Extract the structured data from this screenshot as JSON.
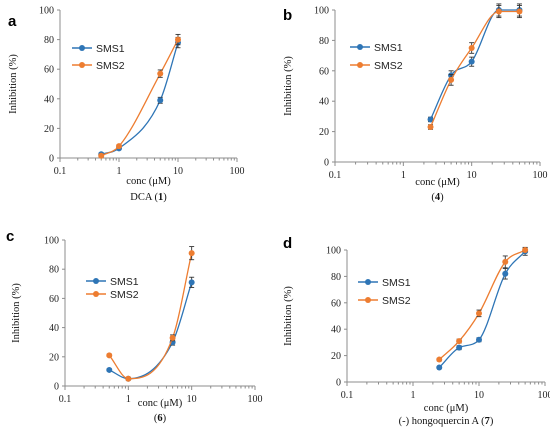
{
  "chart_data": [
    {
      "type": "scatter",
      "panel_letter": "a",
      "xlabel": "conc (μM)",
      "caption_pre": "DCA (",
      "caption_bold": "1",
      "caption_post": ")",
      "ylabel": "Inhibition (%)",
      "x_scale": "log",
      "xlim": [
        0.1,
        100
      ],
      "ylim": [
        0,
        100
      ],
      "x_ticks": [
        0.1,
        1,
        10,
        100
      ],
      "x_tick_labels": [
        "0.1",
        "1",
        "10",
        "100"
      ],
      "y_ticks": [
        0,
        20,
        40,
        60,
        80,
        100
      ],
      "y_tick_labels": [
        "0",
        "20",
        "40",
        "60",
        "80",
        "100"
      ],
      "legend_position": "top-left",
      "series": [
        {
          "name": "SMS1",
          "color": "#2e75b6",
          "x": [
            0.5,
            1,
            5,
            10
          ],
          "y": [
            2.5,
            6.5,
            39,
            78
          ],
          "err": [
            0.8,
            0.8,
            2,
            3.5
          ]
        },
        {
          "name": "SMS2",
          "color": "#ed7d31",
          "x": [
            0.5,
            1,
            5,
            10
          ],
          "y": [
            1.5,
            8,
            57,
            80
          ],
          "err": [
            0.8,
            1,
            2.5,
            3.5
          ]
        }
      ]
    },
    {
      "type": "scatter",
      "panel_letter": "b",
      "xlabel": "conc (μM)",
      "caption_pre": "(",
      "caption_bold": "4",
      "caption_post": ")",
      "ylabel": "Inhibition (%)",
      "x_scale": "log",
      "xlim": [
        0.1,
        100
      ],
      "ylim": [
        0,
        100
      ],
      "x_ticks": [
        0.1,
        1,
        10,
        100
      ],
      "x_tick_labels": [
        "0.1",
        "1",
        "10",
        "100"
      ],
      "y_ticks": [
        0,
        20,
        40,
        60,
        80,
        100
      ],
      "y_tick_labels": [
        "0",
        "20",
        "40",
        "60",
        "80",
        "100"
      ],
      "legend_position": "top-left",
      "series": [
        {
          "name": "SMS1",
          "color": "#2e75b6",
          "x": [
            2.5,
            5,
            10,
            25,
            50
          ],
          "y": [
            28,
            57,
            66,
            100,
            100
          ],
          "err": [
            1.5,
            3,
            3,
            4,
            4
          ]
        },
        {
          "name": "SMS2",
          "color": "#ed7d31",
          "x": [
            2.5,
            5,
            10,
            25,
            50
          ],
          "y": [
            23,
            54,
            75,
            99,
            99
          ],
          "err": [
            1.5,
            3.5,
            3.5,
            4,
            4
          ]
        }
      ]
    },
    {
      "type": "scatter",
      "panel_letter": "c",
      "xlabel": "conc (μM)",
      "caption_pre": "(",
      "caption_bold": "6",
      "caption_post": ")",
      "ylabel": "Inhibition (%)",
      "x_scale": "log",
      "xlim": [
        0.1,
        100
      ],
      "ylim": [
        0,
        100
      ],
      "x_ticks": [
        0.1,
        1,
        10,
        100
      ],
      "x_tick_labels": [
        "0.1",
        "1",
        "10",
        "100"
      ],
      "y_ticks": [
        0,
        20,
        40,
        60,
        80,
        100
      ],
      "y_tick_labels": [
        "0",
        "20",
        "40",
        "60",
        "80",
        "100"
      ],
      "legend_position": "left",
      "series": [
        {
          "name": "SMS1",
          "color": "#2e75b6",
          "x": [
            0.5,
            1,
            5,
            10
          ],
          "y": [
            11,
            5,
            30,
            71
          ],
          "err": [
            0.8,
            0.8,
            2,
            3.5
          ]
        },
        {
          "name": "SMS2",
          "color": "#ed7d31",
          "x": [
            0.5,
            1,
            5,
            10
          ],
          "y": [
            21,
            5,
            33,
            91
          ],
          "err": [
            0.8,
            0.8,
            2,
            4.5
          ]
        }
      ]
    },
    {
      "type": "scatter",
      "panel_letter": "d",
      "xlabel": "conc (μM)",
      "caption_pre": "(-) hongoquercin A (",
      "caption_bold": "7",
      "caption_post": ")",
      "ylabel": "Inhibition (%)",
      "x_scale": "log",
      "xlim": [
        0.1,
        100
      ],
      "ylim": [
        0,
        100
      ],
      "x_ticks": [
        0.1,
        1,
        10,
        100
      ],
      "x_tick_labels": [
        "0.1",
        "1",
        "10",
        "100"
      ],
      "y_ticks": [
        0,
        20,
        40,
        60,
        80,
        100
      ],
      "y_tick_labels": [
        "0",
        "20",
        "40",
        "60",
        "80",
        "100"
      ],
      "legend_position": "top-left",
      "series": [
        {
          "name": "SMS1",
          "color": "#2e75b6",
          "x": [
            2.5,
            5,
            10,
            25,
            50
          ],
          "y": [
            11,
            26,
            32,
            82,
            99
          ],
          "err": [
            0.8,
            1.5,
            1.5,
            4,
            3
          ]
        },
        {
          "name": "SMS2",
          "color": "#ed7d31",
          "x": [
            2.5,
            5,
            10,
            25,
            50
          ],
          "y": [
            17,
            31,
            52,
            91,
            100
          ],
          "err": [
            1,
            1.5,
            2.5,
            4.5,
            1.5
          ]
        }
      ]
    }
  ]
}
